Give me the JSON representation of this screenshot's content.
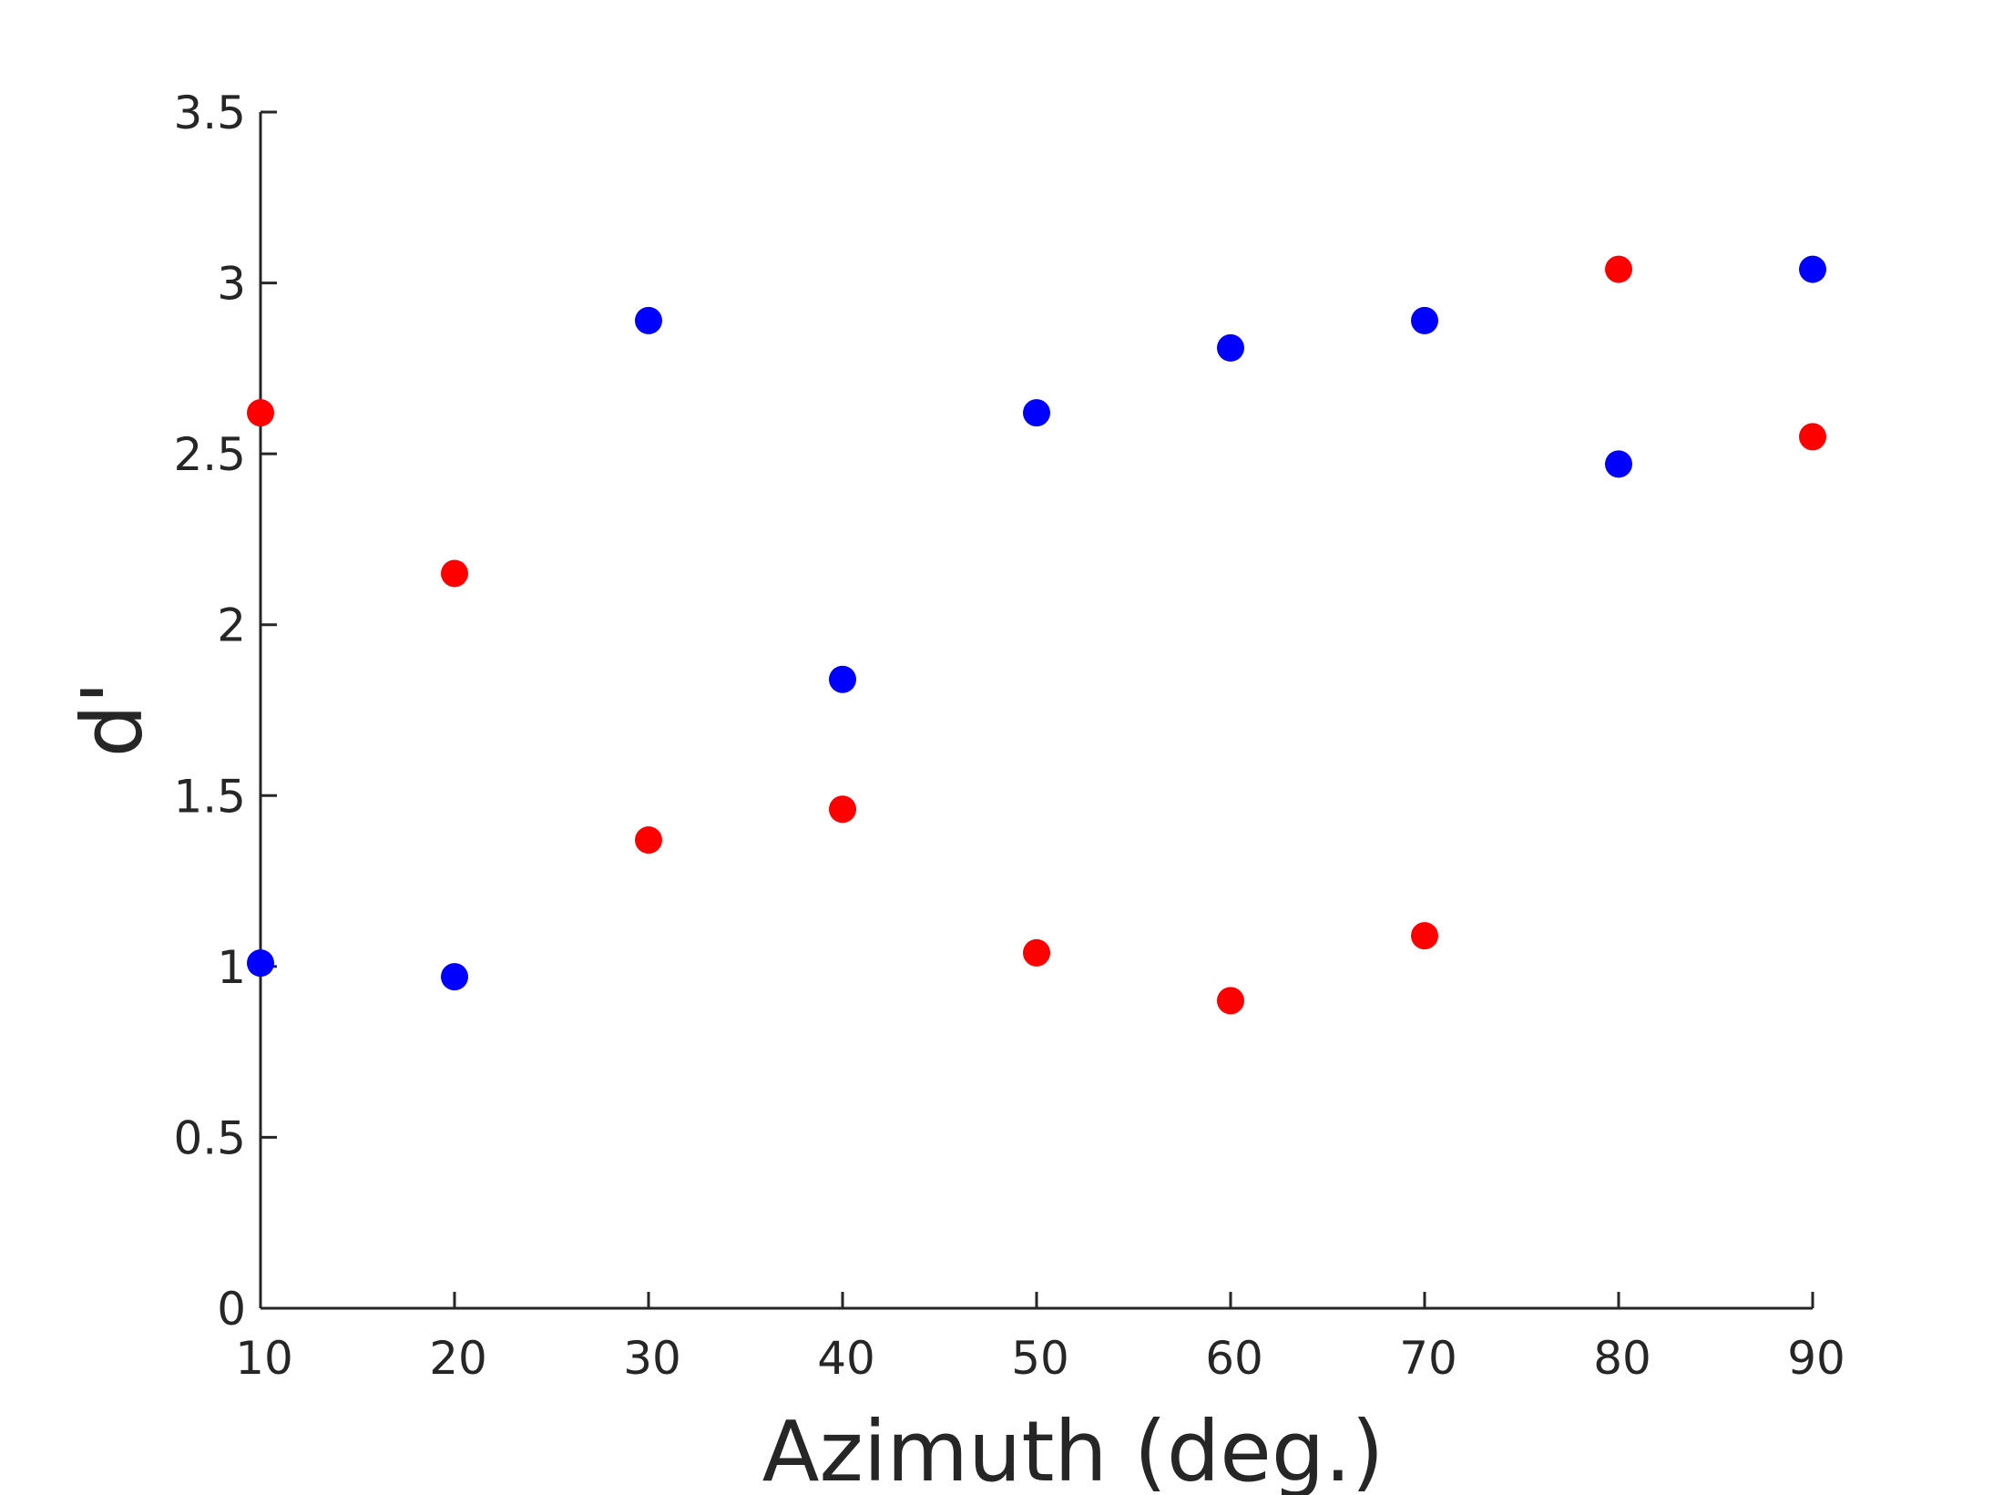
{
  "chart_data": {
    "type": "scatter",
    "title": "",
    "xlabel": "Azimuth (deg.)",
    "ylabel": "d'",
    "xlim": [
      10,
      90
    ],
    "ylim": [
      0,
      3.5
    ],
    "xticks": [
      10,
      20,
      30,
      40,
      50,
      60,
      70,
      80,
      90
    ],
    "xtick_labels": [
      "10",
      "20",
      "30",
      "40",
      "50",
      "60",
      "70",
      "80",
      "90"
    ],
    "yticks": [
      0,
      0.5,
      1,
      1.5,
      2,
      2.5,
      3,
      3.5
    ],
    "ytick_labels": [
      "0",
      "0.5",
      "1",
      "1.5",
      "2",
      "2.5",
      "3",
      "3.5"
    ],
    "grid": false,
    "legend": "none",
    "series": [
      {
        "color": "#0000ff",
        "x": [
          10,
          20,
          30,
          40,
          50,
          60,
          70,
          80,
          90
        ],
        "y": [
          1.01,
          0.97,
          2.89,
          1.84,
          2.62,
          2.81,
          2.89,
          2.47,
          3.04
        ]
      },
      {
        "color": "#ff0000",
        "x": [
          10,
          20,
          30,
          40,
          50,
          60,
          70,
          80,
          90
        ],
        "y": [
          2.62,
          2.15,
          1.37,
          1.46,
          1.04,
          0.9,
          1.09,
          3.04,
          2.55
        ]
      }
    ]
  }
}
